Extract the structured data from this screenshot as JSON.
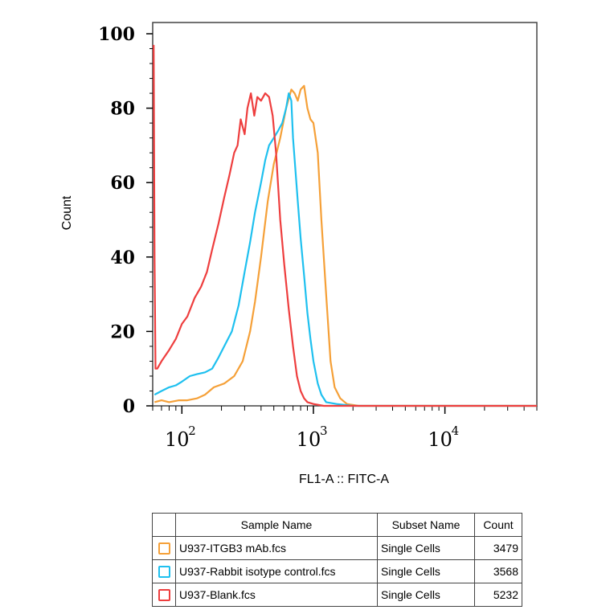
{
  "chart_data": {
    "type": "line",
    "title": "",
    "xlabel": "FL1-A :: FITC-A",
    "ylabel": "Count",
    "ylim": [
      0,
      100
    ],
    "yticks": [
      0,
      20,
      40,
      60,
      80,
      100
    ],
    "xscale": "log",
    "xlim": [
      60,
      50000
    ],
    "xticks": [
      {
        "value": 100,
        "base": "10",
        "exp": "2"
      },
      {
        "value": 1000,
        "base": "10",
        "exp": "3"
      },
      {
        "value": 10000,
        "base": "10",
        "exp": "4"
      }
    ],
    "grid": false,
    "series": [
      {
        "name": "U937-ITGB3 mAb.fcs",
        "color": "#f5a038",
        "points": [
          [
            62,
            1
          ],
          [
            70,
            1.5
          ],
          [
            80,
            1
          ],
          [
            95,
            1.5
          ],
          [
            110,
            1.5
          ],
          [
            130,
            2
          ],
          [
            150,
            3
          ],
          [
            175,
            5
          ],
          [
            210,
            6
          ],
          [
            250,
            8
          ],
          [
            290,
            12
          ],
          [
            330,
            20
          ],
          [
            360,
            28
          ],
          [
            400,
            40
          ],
          [
            450,
            55
          ],
          [
            500,
            65
          ],
          [
            560,
            72
          ],
          [
            620,
            80
          ],
          [
            680,
            85
          ],
          [
            720,
            84
          ],
          [
            760,
            82
          ],
          [
            800,
            85
          ],
          [
            850,
            86
          ],
          [
            900,
            80
          ],
          [
            950,
            77
          ],
          [
            1000,
            76
          ],
          [
            1080,
            68
          ],
          [
            1150,
            50
          ],
          [
            1250,
            30
          ],
          [
            1350,
            12
          ],
          [
            1450,
            5
          ],
          [
            1600,
            2
          ],
          [
            1800,
            0.5
          ],
          [
            2200,
            0
          ],
          [
            5000,
            0
          ],
          [
            20000,
            0
          ],
          [
            50000,
            0
          ]
        ]
      },
      {
        "name": "U937-Rabbit isotype control.fcs",
        "color": "#1ec0ef",
        "points": [
          [
            62,
            3
          ],
          [
            70,
            4
          ],
          [
            80,
            5
          ],
          [
            90,
            5.5
          ],
          [
            100,
            6.5
          ],
          [
            115,
            8
          ],
          [
            130,
            8.5
          ],
          [
            150,
            9
          ],
          [
            170,
            10
          ],
          [
            190,
            13
          ],
          [
            210,
            16
          ],
          [
            240,
            20
          ],
          [
            270,
            27
          ],
          [
            300,
            36
          ],
          [
            330,
            44
          ],
          [
            360,
            52
          ],
          [
            400,
            60
          ],
          [
            430,
            66
          ],
          [
            460,
            70
          ],
          [
            500,
            72
          ],
          [
            540,
            74
          ],
          [
            580,
            76
          ],
          [
            620,
            80
          ],
          [
            650,
            84
          ],
          [
            680,
            82
          ],
          [
            700,
            72
          ],
          [
            760,
            55
          ],
          [
            800,
            45
          ],
          [
            850,
            35
          ],
          [
            900,
            25
          ],
          [
            950,
            18
          ],
          [
            1000,
            12
          ],
          [
            1080,
            6
          ],
          [
            1150,
            3
          ],
          [
            1250,
            1
          ],
          [
            1500,
            0.5
          ],
          [
            2000,
            0
          ],
          [
            5000,
            0
          ],
          [
            20000,
            0
          ],
          [
            50000,
            0
          ]
        ]
      },
      {
        "name": "U937-Blank.fcs",
        "color": "#ee3e3e",
        "points": [
          [
            61,
            97
          ],
          [
            62,
            40
          ],
          [
            63,
            10
          ],
          [
            65,
            10
          ],
          [
            70,
            12
          ],
          [
            80,
            15
          ],
          [
            90,
            18
          ],
          [
            100,
            22
          ],
          [
            110,
            24
          ],
          [
            125,
            29
          ],
          [
            140,
            32
          ],
          [
            155,
            36
          ],
          [
            170,
            42
          ],
          [
            190,
            49
          ],
          [
            210,
            56
          ],
          [
            230,
            62
          ],
          [
            250,
            68
          ],
          [
            265,
            70
          ],
          [
            280,
            77
          ],
          [
            300,
            73
          ],
          [
            315,
            80
          ],
          [
            335,
            84
          ],
          [
            355,
            78
          ],
          [
            375,
            83
          ],
          [
            400,
            82
          ],
          [
            430,
            84
          ],
          [
            460,
            83
          ],
          [
            490,
            78
          ],
          [
            520,
            68
          ],
          [
            560,
            50
          ],
          [
            600,
            38
          ],
          [
            650,
            26
          ],
          [
            700,
            16
          ],
          [
            750,
            8
          ],
          [
            800,
            4
          ],
          [
            850,
            2
          ],
          [
            900,
            1
          ],
          [
            1000,
            0.5
          ],
          [
            1200,
            0
          ],
          [
            5000,
            0
          ],
          [
            20000,
            0
          ],
          [
            50000,
            0
          ]
        ]
      }
    ]
  },
  "legend_table": {
    "headers": {
      "sample": "Sample Name",
      "subset": "Subset Name",
      "count": "Count"
    },
    "rows": [
      {
        "color": "#f5a038",
        "sample": "U937-ITGB3 mAb.fcs",
        "subset": "Single Cells",
        "count": "3479"
      },
      {
        "color": "#1ec0ef",
        "sample": "U937-Rabbit isotype control.fcs",
        "subset": "Single Cells",
        "count": "3568"
      },
      {
        "color": "#ee3e3e",
        "sample": "U937-Blank.fcs",
        "subset": "Single Cells",
        "count": "5232"
      }
    ]
  }
}
